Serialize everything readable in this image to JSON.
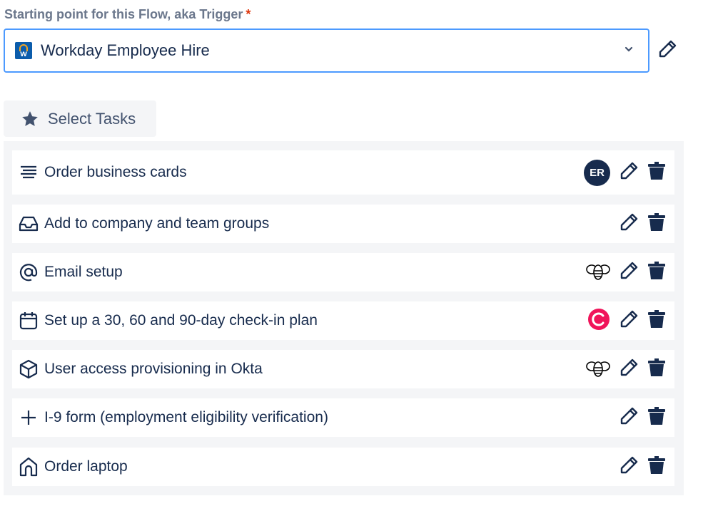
{
  "trigger": {
    "label": "Starting point for this Flow, aka Trigger",
    "required_mark": "*",
    "value": "Workday Employee Hire",
    "app_icon_letter": "w"
  },
  "select_tasks": {
    "label": "Select Tasks"
  },
  "tasks": [
    {
      "title": "Order business cards",
      "icon": "lines-icon",
      "assignee": "ER"
    },
    {
      "title": "Add to company and team groups",
      "icon": "inbox-icon"
    },
    {
      "title": "Email setup",
      "icon": "at-icon",
      "integration": "bee-icon"
    },
    {
      "title": "Set up a 30, 60 and 90-day check-in plan",
      "icon": "calendar-icon",
      "integration": "c-logo-icon"
    },
    {
      "title": "User access provisioning in Okta",
      "icon": "cube-icon",
      "integration": "bee-icon"
    },
    {
      "title": "I-9 form (employment eligibility verification)",
      "icon": "plus-icon"
    },
    {
      "title": "Order laptop",
      "icon": "home-icon"
    }
  ],
  "colors": {
    "accent": "#4c9aff",
    "navy": "#172b4d",
    "integration_red": "#f0145a"
  }
}
